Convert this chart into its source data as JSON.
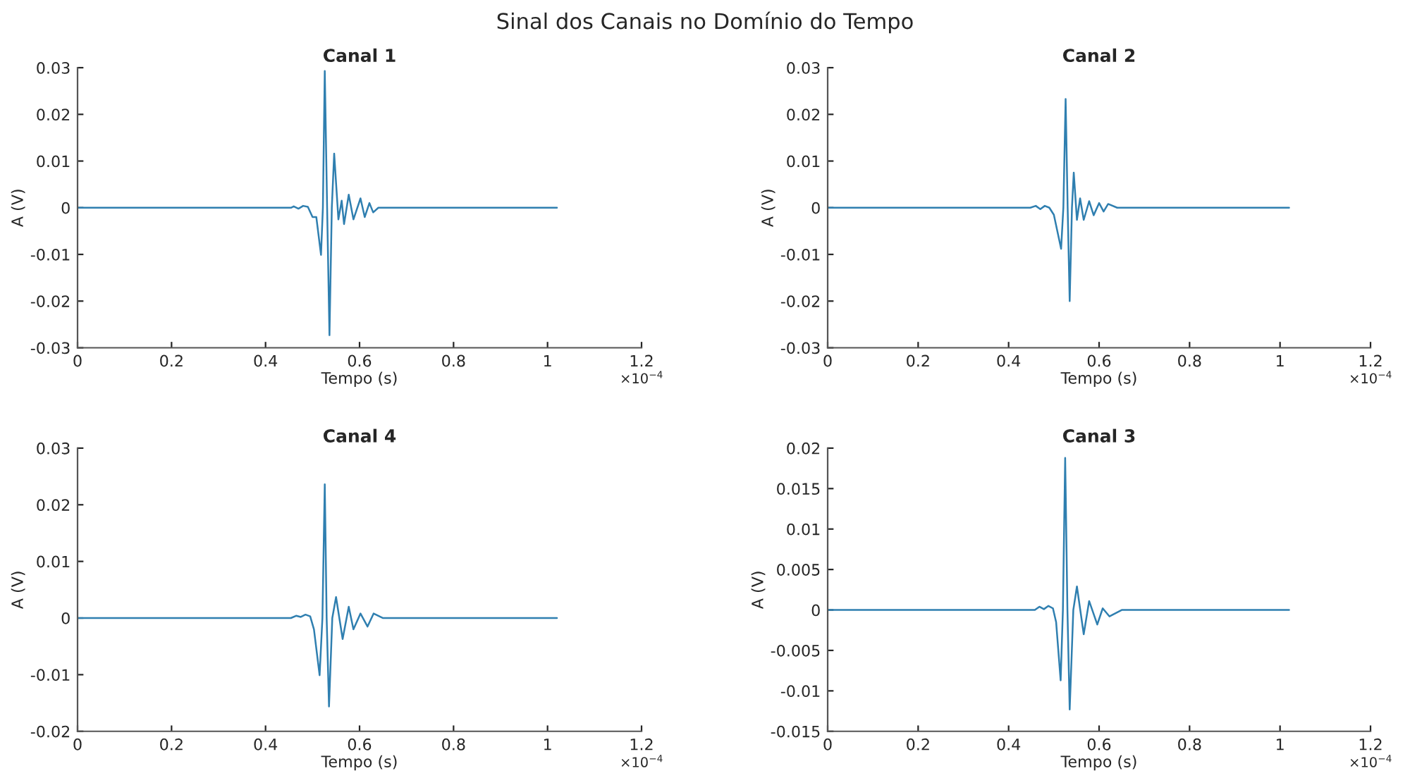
{
  "chart_data": [
    {
      "type": "line",
      "title": "Canal 1",
      "xlabel": "Tempo (s)",
      "ylabel": "A (V)",
      "annotations": [
        "Sinal dos Canais no Domínio do Tempo",
        "×10$^{−4}$"
      ],
      "color": "#2f7fb0",
      "grid": false,
      "x": [
        0,
        0.454,
        0.46,
        0.47,
        0.48,
        0.49,
        0.5,
        0.508,
        0.518,
        0.522,
        0.526,
        0.531,
        0.536,
        0.541,
        0.546,
        0.555,
        0.562,
        0.567,
        0.577,
        0.587,
        0.602,
        0.611,
        0.621,
        0.629,
        0.64,
        1.02
      ],
      "values": [
        0,
        0,
        0.0003,
        -0.0002,
        0.0004,
        0.0002,
        -0.002,
        -0.002,
        -0.0101,
        0,
        0.0293,
        0,
        -0.0273,
        0,
        0.0116,
        -0.0025,
        0.0015,
        -0.0035,
        0.0028,
        -0.0025,
        0.002,
        -0.002,
        0.001,
        -0.001,
        0,
        0
      ],
      "xlim": [
        0,
        1.2
      ],
      "xticks": [
        0,
        0.2,
        0.4,
        0.6,
        0.8,
        1,
        1.2
      ],
      "ylim": [
        -0.03,
        0.03
      ],
      "yticks": [
        -0.03,
        -0.02,
        -0.01,
        0,
        0.01,
        0.02,
        0.03
      ]
    },
    {
      "type": "line",
      "title": "Canal 2",
      "xlabel": "Tempo (s)",
      "ylabel": "A (V)",
      "annotations": [
        "×10$^{−4}$"
      ],
      "color": "#2f7fb0",
      "grid": false,
      "x": [
        0,
        0.448,
        0.46,
        0.47,
        0.48,
        0.49,
        0.5,
        0.516,
        0.521,
        0.526,
        0.5305,
        0.535,
        0.54,
        0.544,
        0.551,
        0.558,
        0.566,
        0.578,
        0.588,
        0.6,
        0.61,
        0.62,
        0.64,
        1.02
      ],
      "values": [
        0,
        0,
        0.0004,
        -0.0003,
        0.0004,
        0,
        -0.0015,
        -0.0088,
        0,
        0.0233,
        0,
        -0.02,
        0,
        0.0075,
        -0.0026,
        0.002,
        -0.0026,
        0.0014,
        -0.0016,
        0.001,
        -0.0008,
        0.0008,
        0,
        0
      ],
      "xlim": [
        0,
        1.2
      ],
      "xticks": [
        0,
        0.2,
        0.4,
        0.6,
        0.8,
        1,
        1.2
      ],
      "ylim": [
        -0.03,
        0.03
      ],
      "yticks": [
        -0.03,
        -0.02,
        -0.01,
        0,
        0.01,
        0.02,
        0.03
      ]
    },
    {
      "type": "line",
      "title": "Canal 4",
      "xlabel": "Tempo (s)",
      "ylabel": "A (V)",
      "annotations": [
        "×10$^{−4}$"
      ],
      "color": "#2f7fb0",
      "grid": false,
      "x": [
        0,
        0.454,
        0.465,
        0.475,
        0.485,
        0.495,
        0.503,
        0.515,
        0.521,
        0.526,
        0.53,
        0.535,
        0.542,
        0.55,
        0.564,
        0.577,
        0.587,
        0.602,
        0.617,
        0.63,
        0.65,
        1.02
      ],
      "values": [
        0,
        0,
        0.0004,
        0.0002,
        0.0006,
        0.0003,
        -0.002,
        -0.0101,
        0,
        0.0236,
        0,
        -0.0156,
        0,
        0.0037,
        -0.0037,
        0.002,
        -0.002,
        0.0008,
        -0.0015,
        0.0008,
        0,
        0
      ],
      "xlim": [
        0,
        1.2
      ],
      "xticks": [
        0,
        0.2,
        0.4,
        0.6,
        0.8,
        1,
        1.2
      ],
      "ylim": [
        -0.02,
        0.03
      ],
      "yticks": [
        -0.02,
        -0.01,
        0,
        0.01,
        0.02,
        0.03
      ]
    },
    {
      "type": "line",
      "title": "Canal 3",
      "xlabel": "Tempo (s)",
      "ylabel": "A (V)",
      "annotations": [
        "×10$^{−4}$"
      ],
      "color": "#2f7fb0",
      "grid": false,
      "x": [
        0,
        0.458,
        0.468,
        0.478,
        0.488,
        0.498,
        0.505,
        0.515,
        0.52,
        0.525,
        0.53,
        0.535,
        0.543,
        0.551,
        0.566,
        0.578,
        0.596,
        0.608,
        0.623,
        0.65,
        1.02
      ],
      "values": [
        0,
        0,
        0.0004,
        0.0001,
        0.0005,
        0.0002,
        -0.0015,
        -0.0087,
        0,
        0.0188,
        0,
        -0.0123,
        0,
        0.0029,
        -0.003,
        0.0011,
        -0.0018,
        0.0002,
        -0.0008,
        0,
        0
      ],
      "xlim": [
        0,
        1.2
      ],
      "xticks": [
        0,
        0.2,
        0.4,
        0.6,
        0.8,
        1,
        1.2
      ],
      "ylim": [
        -0.015,
        0.02
      ],
      "yticks": [
        -0.015,
        -0.01,
        -0.005,
        0,
        0.005,
        0.01,
        0.015,
        0.02
      ]
    }
  ]
}
